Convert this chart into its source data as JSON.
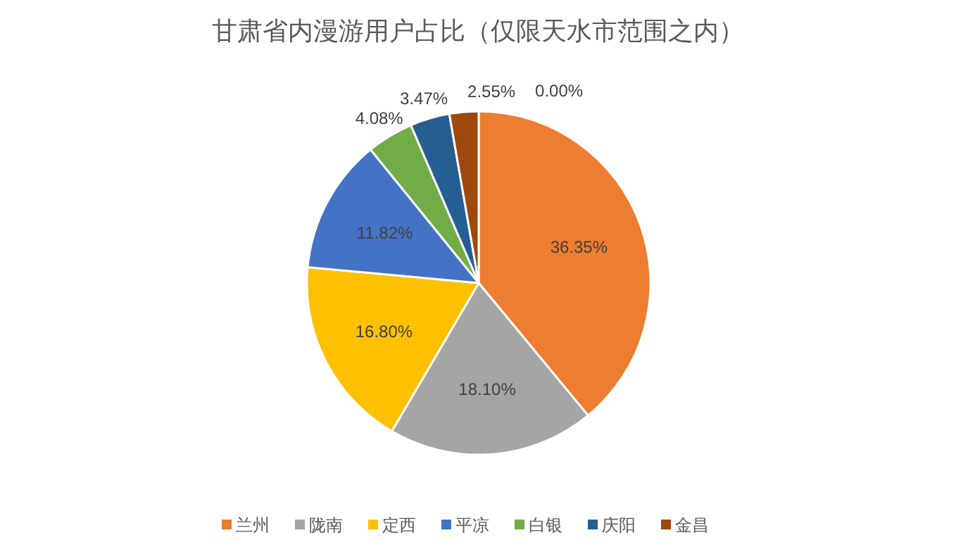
{
  "chart_data": {
    "type": "pie",
    "title": "甘肃省内漫游用户占比（仅限天水市范围之内）",
    "categories": [
      "兰州",
      "陇南",
      "定西",
      "平凉",
      "白银",
      "庆阳",
      "金昌",
      null
    ],
    "values": [
      36.35,
      18.1,
      16.8,
      11.82,
      4.08,
      3.47,
      2.55,
      0.0
    ],
    "colors": [
      "#ed7d31",
      "#a5a5a5",
      "#ffc000",
      "#4472c4",
      "#70ad47",
      "#255e91",
      "#9e480e",
      "#636363"
    ],
    "value_labels": [
      "36.35%",
      "18.10%",
      "16.80%",
      "11.82%",
      "4.08%",
      "3.47%",
      "2.55%",
      "0.00%"
    ],
    "legend": "bottom"
  }
}
